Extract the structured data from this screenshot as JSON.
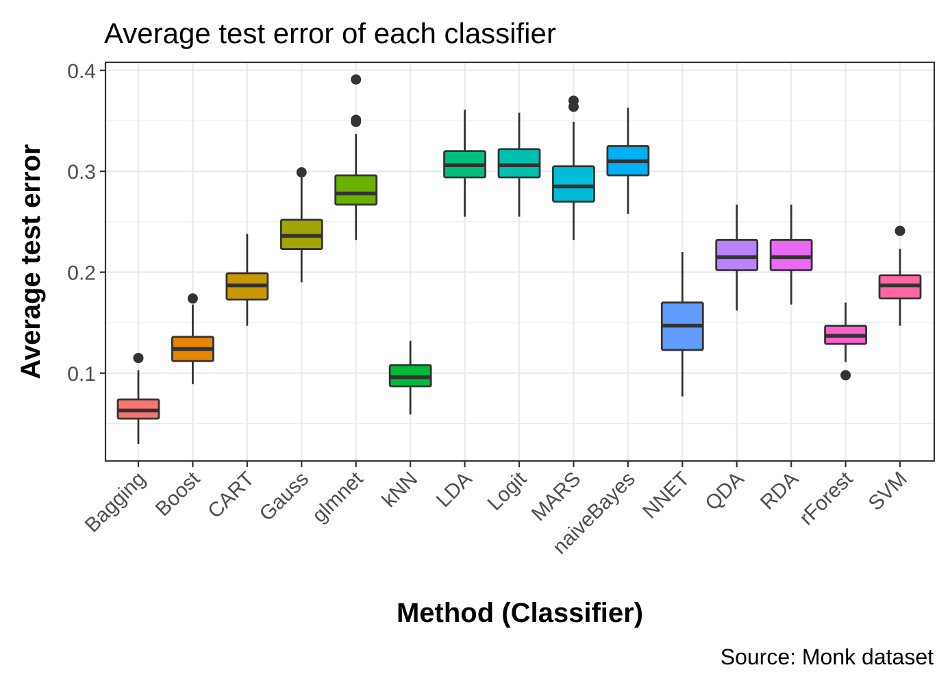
{
  "chart_data": {
    "type": "boxplot",
    "title": "Average test error of each classifier",
    "xlabel": "Method (Classifier)",
    "ylabel": "Average test error",
    "caption": "Source: Monk dataset",
    "ylim": [
      0.013,
      0.408
    ],
    "yticks": [
      0.1,
      0.2,
      0.3,
      0.4
    ],
    "ytick_labels": [
      "0.1",
      "0.2",
      "0.3",
      "0.4"
    ],
    "grid": true,
    "legend": "none",
    "categories": [
      "Bagging",
      "Boost",
      "CART",
      "Gauss",
      "glmnet",
      "kNN",
      "LDA",
      "Logit",
      "MARS",
      "naiveBayes",
      "NNET",
      "QDA",
      "RDA",
      "rForest",
      "SVM"
    ],
    "boxes": [
      {
        "name": "Bagging",
        "color": "#F8766D",
        "whisker_low": 0.03,
        "q1": 0.055,
        "median": 0.063,
        "q3": 0.074,
        "whisker_high": 0.103,
        "outliers": [
          0.115
        ]
      },
      {
        "name": "Boost",
        "color": "#E58700",
        "whisker_low": 0.089,
        "q1": 0.112,
        "median": 0.124,
        "q3": 0.136,
        "whisker_high": 0.168,
        "outliers": [
          0.174
        ]
      },
      {
        "name": "CART",
        "color": "#C99800",
        "whisker_low": 0.147,
        "q1": 0.173,
        "median": 0.187,
        "q3": 0.199,
        "whisker_high": 0.238,
        "outliers": []
      },
      {
        "name": "Gauss",
        "color": "#A3A500",
        "whisker_low": 0.19,
        "q1": 0.223,
        "median": 0.236,
        "q3": 0.252,
        "whisker_high": 0.294,
        "outliers": [
          0.299
        ]
      },
      {
        "name": "glmnet",
        "color": "#6BB100",
        "whisker_low": 0.232,
        "q1": 0.267,
        "median": 0.278,
        "q3": 0.296,
        "whisker_high": 0.337,
        "outliers": [
          0.349,
          0.351,
          0.391
        ]
      },
      {
        "name": "kNN",
        "color": "#00BA38",
        "whisker_low": 0.059,
        "q1": 0.087,
        "median": 0.096,
        "q3": 0.108,
        "whisker_high": 0.132,
        "outliers": []
      },
      {
        "name": "LDA",
        "color": "#00BF7D",
        "whisker_low": 0.255,
        "q1": 0.294,
        "median": 0.306,
        "q3": 0.32,
        "whisker_high": 0.361,
        "outliers": []
      },
      {
        "name": "Logit",
        "color": "#00C0AF",
        "whisker_low": 0.255,
        "q1": 0.294,
        "median": 0.306,
        "q3": 0.322,
        "whisker_high": 0.358,
        "outliers": []
      },
      {
        "name": "MARS",
        "color": "#00BCD8",
        "whisker_low": 0.232,
        "q1": 0.27,
        "median": 0.285,
        "q3": 0.305,
        "whisker_high": 0.349,
        "outliers": [
          0.364,
          0.37
        ]
      },
      {
        "name": "naiveBayes",
        "color": "#00B0F6",
        "whisker_low": 0.258,
        "q1": 0.296,
        "median": 0.31,
        "q3": 0.325,
        "whisker_high": 0.363,
        "outliers": []
      },
      {
        "name": "NNET",
        "color": "#619CFF",
        "whisker_low": 0.077,
        "q1": 0.123,
        "median": 0.147,
        "q3": 0.17,
        "whisker_high": 0.22,
        "outliers": []
      },
      {
        "name": "QDA",
        "color": "#B983FF",
        "whisker_low": 0.162,
        "q1": 0.202,
        "median": 0.215,
        "q3": 0.232,
        "whisker_high": 0.267,
        "outliers": []
      },
      {
        "name": "RDA",
        "color": "#E76BF3",
        "whisker_low": 0.168,
        "q1": 0.202,
        "median": 0.215,
        "q3": 0.232,
        "whisker_high": 0.267,
        "outliers": []
      },
      {
        "name": "rForest",
        "color": "#FD61D1",
        "whisker_low": 0.111,
        "q1": 0.129,
        "median": 0.137,
        "q3": 0.147,
        "whisker_high": 0.17,
        "outliers": [
          0.098
        ]
      },
      {
        "name": "SVM",
        "color": "#FF67A4",
        "whisker_low": 0.147,
        "q1": 0.174,
        "median": 0.187,
        "q3": 0.197,
        "whisker_high": 0.223,
        "outliers": [
          0.241
        ]
      }
    ]
  }
}
